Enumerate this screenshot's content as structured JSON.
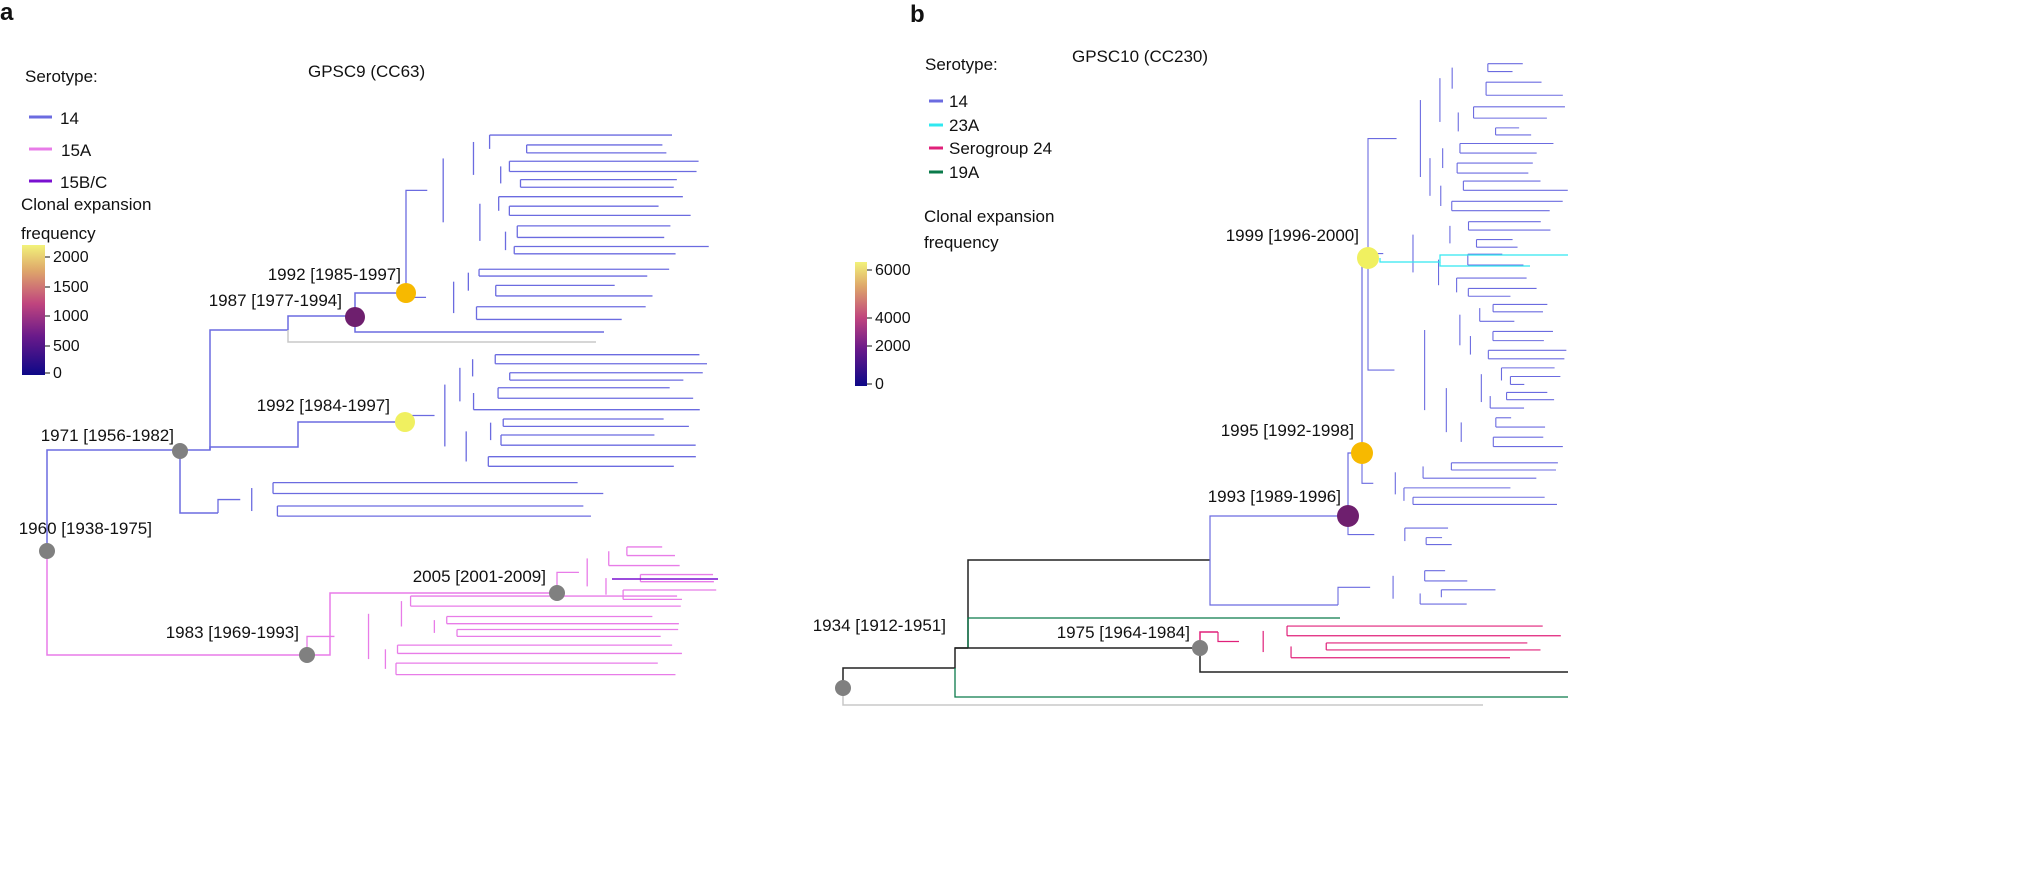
{
  "colors": {
    "serotype_14": "#6b6be0",
    "serotype_15A": "#e87ce8",
    "serotype_15BC": "#7a10d0",
    "serotype_23A": "#30e8f0",
    "serogroup_24": "#e0207a",
    "serotype_19A": "#0a7a4a",
    "ancestral": "#222222",
    "unassigned": "#c8c8c8",
    "node_grey": "#808080",
    "node_purple": "#6e1f6e",
    "node_orange": "#f7b900",
    "node_yellow": "#f0f060"
  },
  "panel_a": {
    "panel_label": "a",
    "title": "GPSC9 (CC63)",
    "legend_title": "Serotype:",
    "legend": [
      {
        "label": "14",
        "color": "#6b6be0"
      },
      {
        "label": "15A",
        "color": "#e87ce8"
      },
      {
        "label": "15B/C",
        "color": "#7a10d0"
      }
    ],
    "colorbar_title_line1": "Clonal expansion",
    "colorbar_title_line2": "frequency",
    "colorbar_ticks": [
      "2000",
      "1500",
      "1000",
      "500",
      "0"
    ],
    "nodes": [
      {
        "label": "1960 [1938-1975]",
        "color": "grey"
      },
      {
        "label": "1971 [1956-1982]",
        "color": "grey"
      },
      {
        "label": "1987 [1977-1994]",
        "color": "purple"
      },
      {
        "label": "1992 [1985-1997]",
        "color": "orange"
      },
      {
        "label": "1992 [1984-1997]",
        "color": "yellow"
      },
      {
        "label": "1983 [1969-1993]",
        "color": "grey"
      },
      {
        "label": "2005 [2001-2009]",
        "color": "grey"
      }
    ]
  },
  "panel_b": {
    "panel_label": "b",
    "title": "GPSC10 (CC230)",
    "legend_title": "Serotype:",
    "legend": [
      {
        "label": "14",
        "color": "#6b6be0"
      },
      {
        "label": "23A",
        "color": "#30e8f0"
      },
      {
        "label": "Serogroup 24",
        "color": "#e0207a"
      },
      {
        "label": "19A",
        "color": "#0a7a4a"
      }
    ],
    "colorbar_title_line1": "Clonal expansion",
    "colorbar_title_line2": "frequency",
    "colorbar_ticks": [
      "6000",
      "4000",
      "2000",
      "0"
    ],
    "nodes": [
      {
        "label": "1999 [1996-2000]",
        "color": "yellow"
      },
      {
        "label": "1995 [1992-1998]",
        "color": "orange"
      },
      {
        "label": "1993 [1989-1996]",
        "color": "purple"
      },
      {
        "label": "1934 [1912-1951]",
        "color": "grey"
      },
      {
        "label": "1975 [1964-1984]",
        "color": "grey"
      }
    ]
  }
}
